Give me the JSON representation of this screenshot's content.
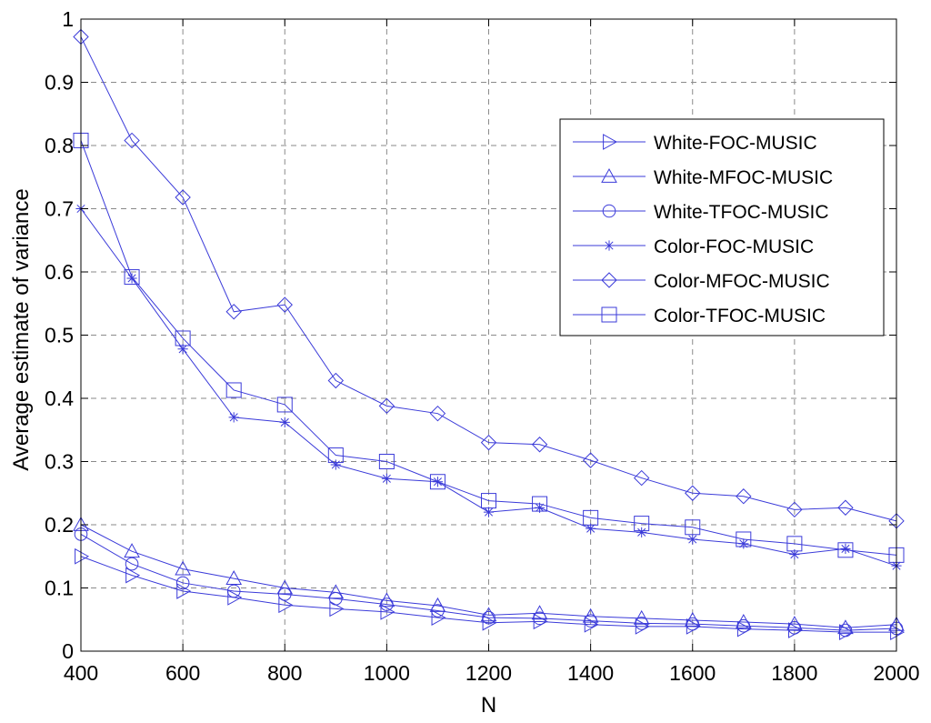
{
  "chart_data": {
    "type": "line",
    "title": "",
    "xlabel": "N",
    "ylabel": "Average estimate of variance",
    "xlim": [
      400,
      2000
    ],
    "ylim": [
      0,
      1
    ],
    "xticks": [
      400,
      600,
      800,
      1000,
      1200,
      1400,
      1600,
      1800,
      2000
    ],
    "xtick_labels": [
      "400",
      "600",
      "800",
      "1000",
      "1200",
      "1400",
      "1600",
      "1800",
      "2000"
    ],
    "yticks": [
      0,
      0.1,
      0.2,
      0.3,
      0.4,
      0.5,
      0.6,
      0.7,
      0.8,
      0.9,
      1
    ],
    "ytick_labels": [
      "0",
      "0.1",
      "0.2",
      "0.3",
      "0.4",
      "0.5",
      "0.6",
      "0.7",
      "0.8",
      "0.9",
      "1"
    ],
    "grid": true,
    "legend_position": "top-right",
    "line_color": "#3b3bd9",
    "x": [
      400,
      500,
      600,
      700,
      800,
      900,
      1000,
      1100,
      1200,
      1300,
      1400,
      1500,
      1600,
      1700,
      1800,
      1900,
      2000
    ],
    "series": [
      {
        "name": "White-FOC-MUSIC",
        "marker": "triangle-right",
        "values": [
          0.15,
          0.12,
          0.095,
          0.085,
          0.073,
          0.067,
          0.062,
          0.053,
          0.045,
          0.047,
          0.042,
          0.039,
          0.039,
          0.035,
          0.033,
          0.03,
          0.03
        ]
      },
      {
        "name": "White-MFOC-MUSIC",
        "marker": "triangle-up",
        "values": [
          0.2,
          0.158,
          0.13,
          0.115,
          0.1,
          0.093,
          0.08,
          0.072,
          0.057,
          0.06,
          0.055,
          0.052,
          0.049,
          0.046,
          0.043,
          0.037,
          0.042
        ]
      },
      {
        "name": "White-TFOC-MUSIC",
        "marker": "circle",
        "values": [
          0.185,
          0.138,
          0.108,
          0.095,
          0.09,
          0.083,
          0.074,
          0.064,
          0.053,
          0.052,
          0.048,
          0.044,
          0.043,
          0.04,
          0.037,
          0.033,
          0.036
        ]
      },
      {
        "name": "Color-FOC-MUSIC",
        "marker": "asterisk",
        "values": [
          0.7,
          0.59,
          0.478,
          0.37,
          0.362,
          0.295,
          0.273,
          0.268,
          0.22,
          0.227,
          0.194,
          0.188,
          0.177,
          0.17,
          0.153,
          0.162,
          0.135
        ]
      },
      {
        "name": "Color-MFOC-MUSIC",
        "marker": "diamond",
        "values": [
          0.972,
          0.808,
          0.718,
          0.537,
          0.548,
          0.428,
          0.388,
          0.376,
          0.33,
          0.327,
          0.302,
          0.274,
          0.25,
          0.245,
          0.224,
          0.227,
          0.206
        ]
      },
      {
        "name": "Color-TFOC-MUSIC",
        "marker": "square",
        "values": [
          0.808,
          0.592,
          0.495,
          0.413,
          0.39,
          0.31,
          0.3,
          0.268,
          0.238,
          0.233,
          0.211,
          0.202,
          0.196,
          0.177,
          0.17,
          0.16,
          0.152
        ]
      }
    ]
  }
}
